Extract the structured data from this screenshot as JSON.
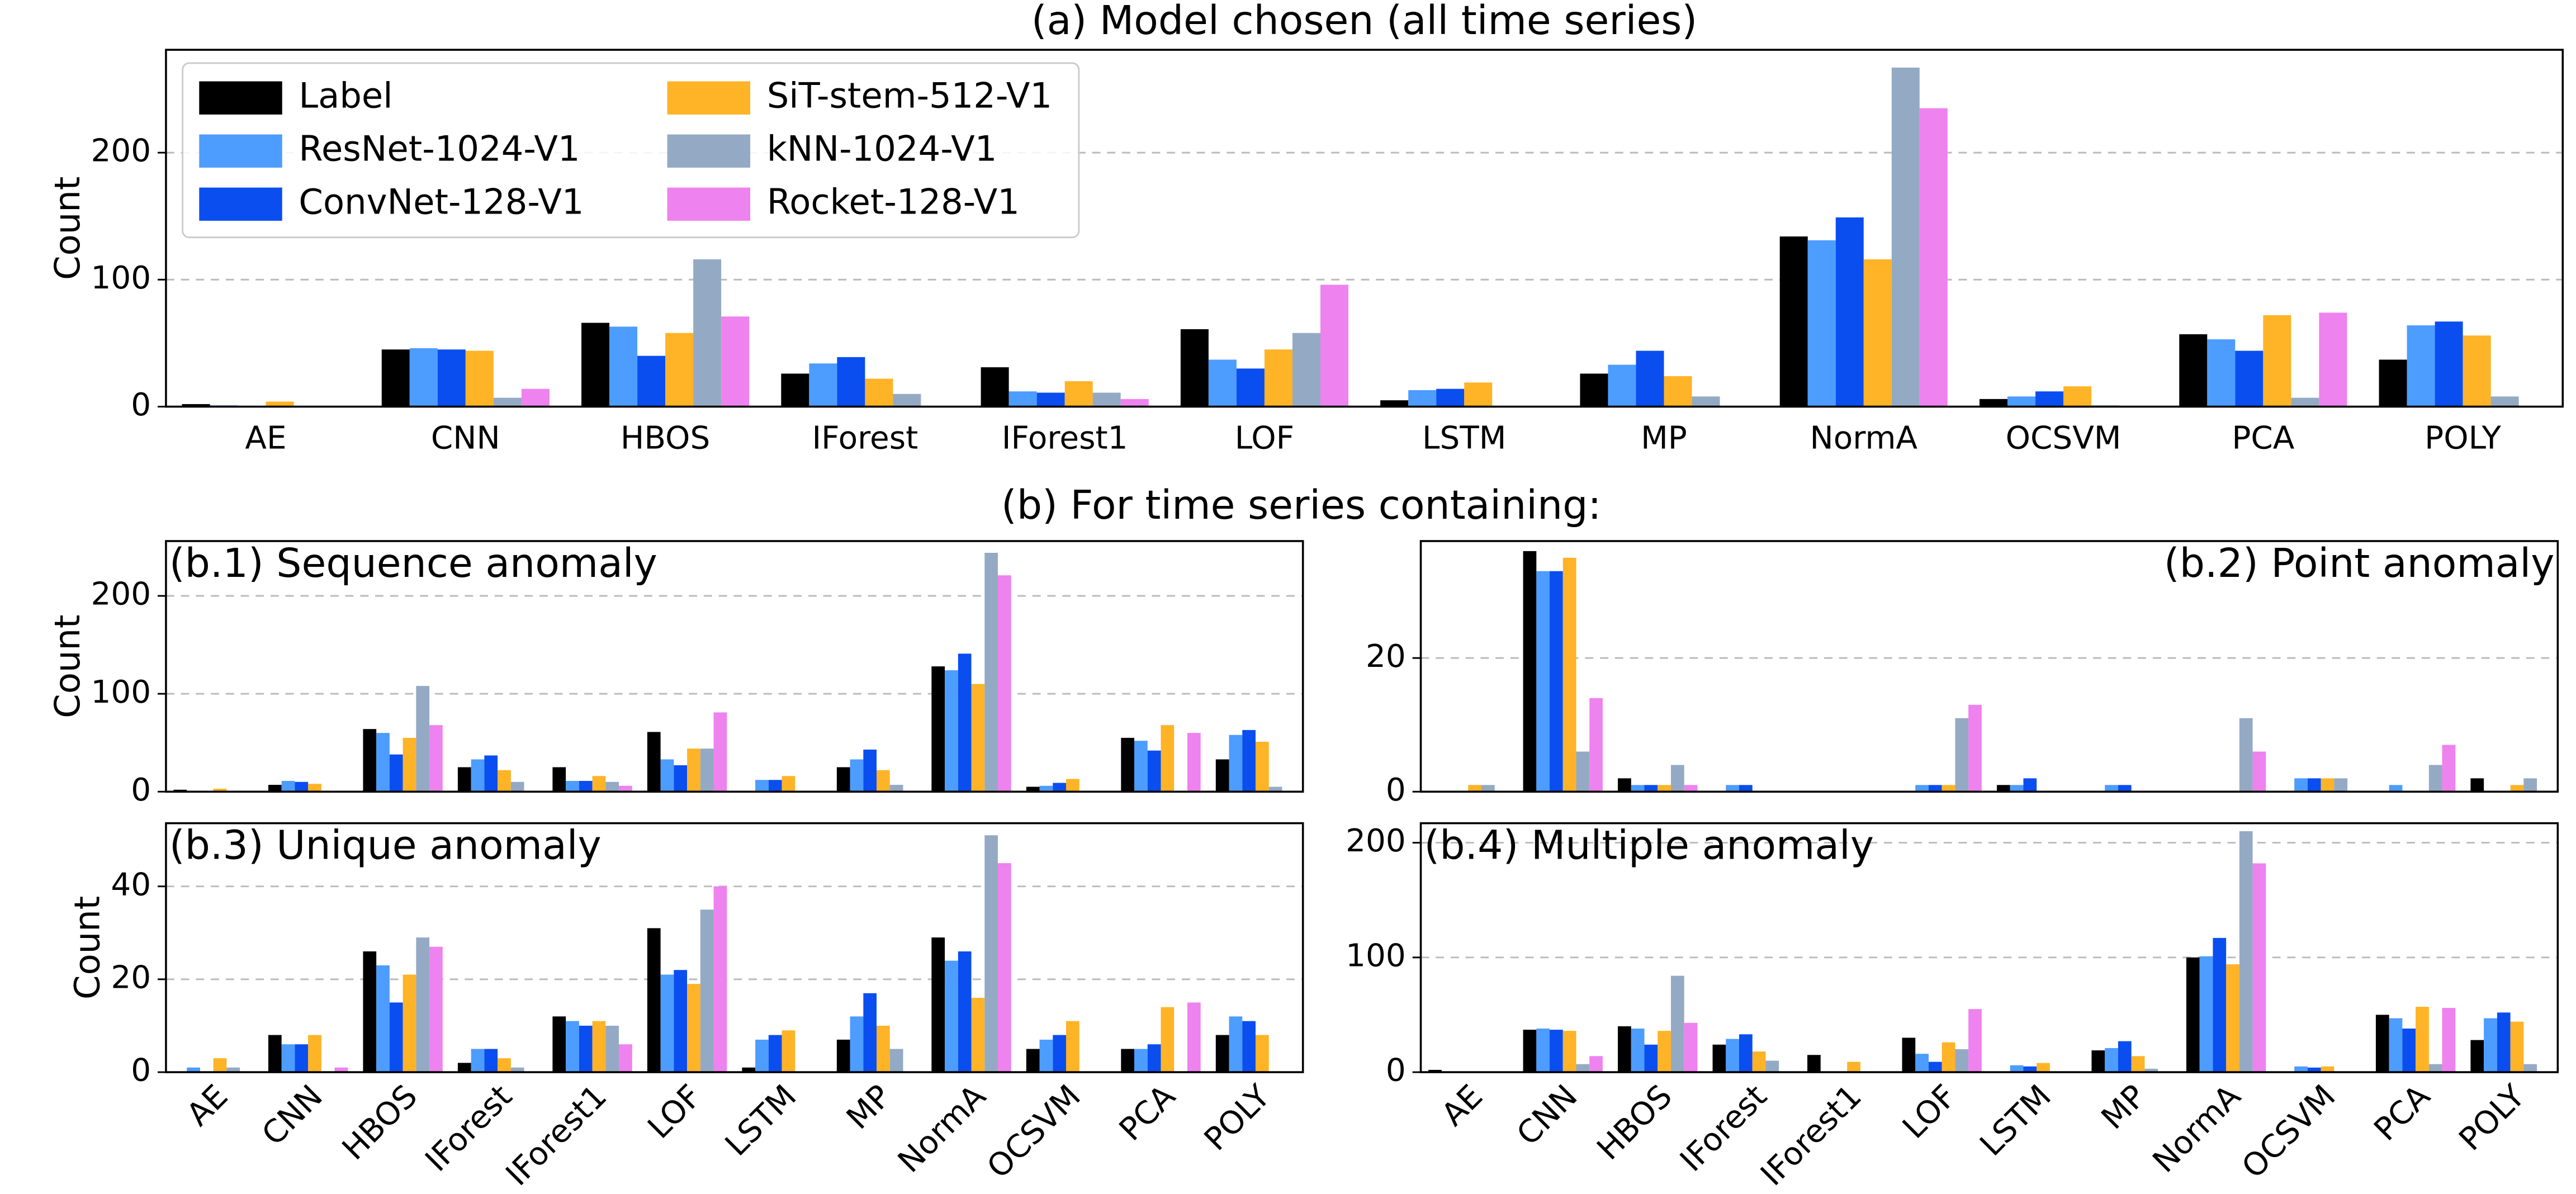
{
  "section_title": "(b) For time series containing:",
  "chart_data": [
    {
      "type": "bar",
      "title": "(a) Model chosen (all time series)",
      "title_loc": "top",
      "ylabel": "Count",
      "categories": [
        "AE",
        "CNN",
        "HBOS",
        "IForest",
        "IForest1",
        "LOF",
        "LSTM",
        "MP",
        "NormA",
        "OCSVM",
        "PCA",
        "POLY"
      ],
      "legend": "upper left",
      "grid": true,
      "ylim": [
        0,
        281
      ],
      "yticks": [
        0,
        100,
        200
      ],
      "series": [
        {
          "name": "Label",
          "color": "#000000",
          "values": [
            2,
            45,
            66,
            26,
            31,
            61,
            5,
            26,
            134,
            6,
            57,
            37
          ]
        },
        {
          "name": "ResNet-1024-V1",
          "color": "#4d9cff",
          "values": [
            1,
            46,
            63,
            34,
            12,
            37,
            13,
            33,
            131,
            8,
            53,
            64
          ]
        },
        {
          "name": "ConvNet-128-V1",
          "color": "#0a4ef0",
          "values": [
            0,
            45,
            40,
            39,
            11,
            30,
            14,
            44,
            149,
            12,
            44,
            67
          ]
        },
        {
          "name": "SiT-stem-512-V1",
          "color": "#ffb326",
          "values": [
            4,
            44,
            58,
            22,
            20,
            45,
            19,
            24,
            116,
            16,
            72,
            56
          ]
        },
        {
          "name": "kNN-1024-V1",
          "color": "#94aac4",
          "values": [
            0,
            7,
            116,
            10,
            11,
            58,
            0,
            8,
            267,
            1,
            7,
            8
          ]
        },
        {
          "name": "Rocket-128-V1",
          "color": "#ee82ee",
          "values": [
            0,
            14,
            71,
            0,
            6,
            96,
            0,
            0,
            235,
            0,
            74,
            0
          ]
        }
      ]
    },
    {
      "type": "bar",
      "title": "(b.1) Sequence anomaly",
      "title_loc": "left",
      "ylabel": "Count",
      "grid": true,
      "ylim": [
        0,
        256
      ],
      "yticks": [
        0,
        100,
        200
      ],
      "series": [
        {
          "values": [
            2,
            7,
            64,
            25,
            25,
            61,
            0,
            25,
            128,
            5,
            55,
            33
          ]
        },
        {
          "values": [
            1,
            11,
            60,
            33,
            11,
            33,
            12,
            33,
            124,
            6,
            52,
            58
          ]
        },
        {
          "values": [
            0,
            10,
            38,
            37,
            11,
            27,
            12,
            43,
            141,
            9,
            42,
            63
          ]
        },
        {
          "values": [
            3,
            8,
            55,
            22,
            16,
            44,
            16,
            22,
            110,
            13,
            68,
            51
          ]
        },
        {
          "values": [
            0,
            0,
            108,
            10,
            10,
            44,
            0,
            7,
            244,
            0,
            0,
            5
          ]
        },
        {
          "values": [
            0,
            0,
            68,
            0,
            6,
            81,
            0,
            0,
            221,
            0,
            60,
            0
          ]
        }
      ]
    },
    {
      "type": "bar",
      "title": "(b.2) Point anomaly",
      "title_loc": "right",
      "grid": true,
      "ylim": [
        0,
        37.5
      ],
      "yticks": [
        0,
        20
      ],
      "series": [
        {
          "values": [
            0,
            36,
            2,
            0,
            0,
            0,
            1,
            0,
            0,
            0,
            0,
            2
          ]
        },
        {
          "values": [
            0,
            33,
            1,
            1,
            0,
            1,
            1,
            1,
            0,
            2,
            1,
            0
          ]
        },
        {
          "values": [
            0,
            33,
            1,
            1,
            0,
            1,
            2,
            1,
            0,
            2,
            0,
            0
          ]
        },
        {
          "values": [
            1,
            35,
            1,
            0,
            0,
            1,
            0,
            0,
            0,
            2,
            0,
            1
          ]
        },
        {
          "values": [
            1,
            6,
            4,
            0,
            0,
            11,
            0,
            0,
            11,
            2,
            4,
            2
          ]
        },
        {
          "values": [
            0,
            14,
            1,
            0,
            0,
            13,
            0,
            0,
            6,
            0,
            7,
            0
          ]
        }
      ]
    },
    {
      "type": "bar",
      "title": "(b.3) Unique anomaly",
      "title_loc": "left",
      "ylabel": "Count",
      "categories": [
        "AE",
        "CNN",
        "HBOS",
        "IForest",
        "IForest1",
        "LOF",
        "LSTM",
        "MP",
        "NormA",
        "OCSVM",
        "PCA",
        "POLY"
      ],
      "xtick_rotation": 45,
      "grid": true,
      "ylim": [
        0,
        53.6
      ],
      "yticks": [
        0,
        20,
        40
      ],
      "series": [
        {
          "values": [
            0,
            8,
            26,
            2,
            12,
            31,
            1,
            7,
            29,
            5,
            5,
            8
          ]
        },
        {
          "values": [
            1,
            6,
            23,
            5,
            11,
            21,
            7,
            12,
            24,
            7,
            5,
            12
          ]
        },
        {
          "values": [
            0,
            6,
            15,
            5,
            10,
            22,
            8,
            17,
            26,
            8,
            6,
            11
          ]
        },
        {
          "values": [
            3,
            8,
            21,
            3,
            11,
            19,
            9,
            10,
            16,
            11,
            14,
            8
          ]
        },
        {
          "values": [
            1,
            0,
            29,
            1,
            10,
            35,
            0,
            5,
            51,
            0,
            0,
            0
          ]
        },
        {
          "values": [
            0,
            1,
            27,
            0,
            6,
            40,
            0,
            0,
            45,
            0,
            15,
            0
          ]
        }
      ]
    },
    {
      "type": "bar",
      "title": "(b.4) Multiple anomaly",
      "title_loc": "left",
      "categories": [
        "AE",
        "CNN",
        "HBOS",
        "IForest",
        "IForest1",
        "LOF",
        "LSTM",
        "MP",
        "NormA",
        "OCSVM",
        "PCA",
        "POLY"
      ],
      "xtick_rotation": 45,
      "grid": true,
      "ylim": [
        0,
        217
      ],
      "yticks": [
        0,
        100,
        200
      ],
      "series": [
        {
          "values": [
            2,
            37,
            40,
            24,
            15,
            30,
            0,
            19,
            100,
            0,
            50,
            28
          ]
        },
        {
          "values": [
            0,
            38,
            38,
            29,
            0,
            16,
            6,
            21,
            101,
            5,
            47,
            47
          ]
        },
        {
          "values": [
            0,
            37,
            24,
            33,
            0,
            9,
            5,
            27,
            117,
            4,
            38,
            52
          ]
        },
        {
          "values": [
            0,
            36,
            36,
            18,
            9,
            26,
            8,
            14,
            94,
            5,
            57,
            44
          ]
        },
        {
          "values": [
            0,
            7,
            84,
            10,
            0,
            20,
            0,
            3,
            210,
            0,
            7,
            7
          ]
        },
        {
          "values": [
            0,
            14,
            43,
            0,
            0,
            55,
            0,
            0,
            182,
            0,
            56,
            0
          ]
        }
      ]
    }
  ]
}
